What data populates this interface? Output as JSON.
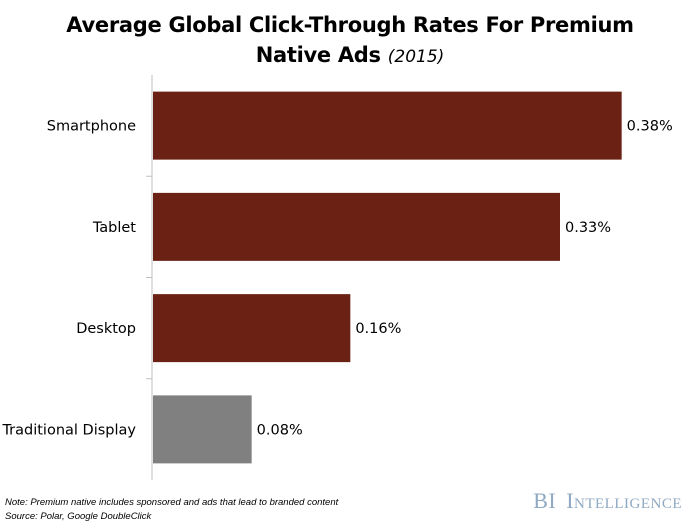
{
  "chart_data": {
    "type": "bar",
    "orientation": "horizontal",
    "title": "Average Global Click-Through Rates For Premium Native Ads",
    "title_line1": "Average Global Click-Through Rates For Premium",
    "title_line2": "Native Ads",
    "subtitle": "(2015)",
    "categories": [
      "Smartphone",
      "Tablet",
      "Desktop",
      "Traditional Display"
    ],
    "values": [
      0.38,
      0.33,
      0.16,
      0.08
    ],
    "value_labels": [
      "0.38%",
      "0.33%",
      "0.16%",
      "0.08%"
    ],
    "colors": [
      "#6b2214",
      "#6b2214",
      "#6b2214",
      "#808080"
    ],
    "xlabel": "",
    "ylabel": "",
    "xlim": [
      0,
      0.42
    ],
    "grid": false,
    "legend": "none"
  },
  "footer": {
    "note": "Note: Premium native includes sponsored and ads that lead to branded content",
    "source": "Source: Polar, Google DoubleClick",
    "brand_bi": "BI",
    "brand_rest": "Intelligence"
  }
}
